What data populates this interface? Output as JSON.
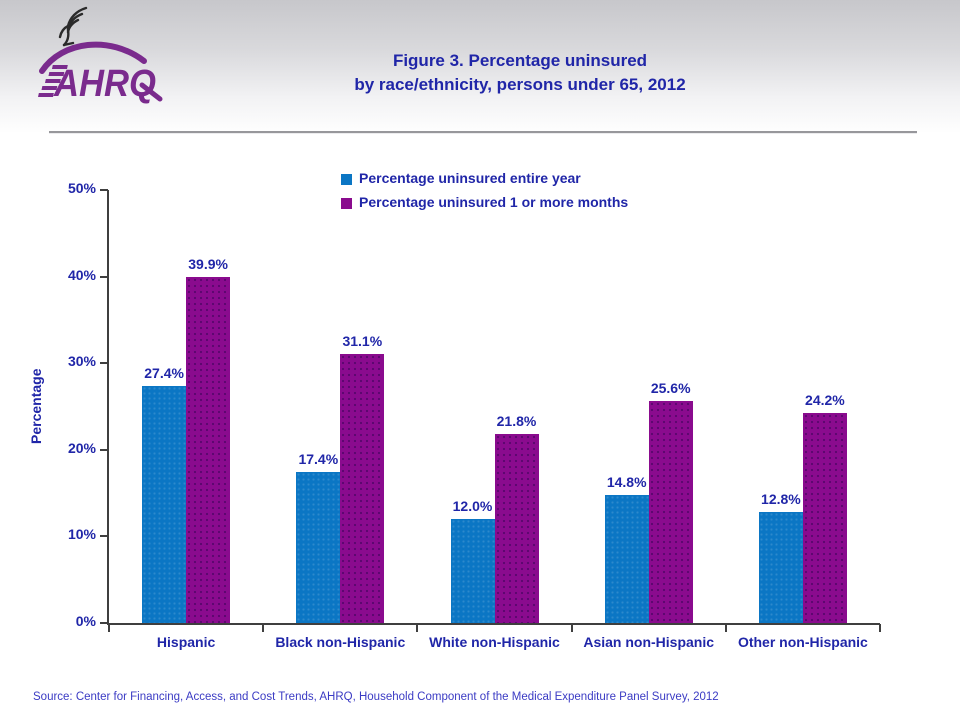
{
  "header": {
    "logo_text": "AHRQ",
    "title_line1": "Figure 3. Percentage uninsured",
    "title_line2": "by race/ethnicity, persons under 65, 2012"
  },
  "chart_data": {
    "type": "bar",
    "title": "Figure 3. Percentage uninsured by race/ethnicity, persons under 65, 2012",
    "categories": [
      "Hispanic",
      "Black non-Hispanic",
      "White non-Hispanic",
      "Asian non-Hispanic",
      "Other non-Hispanic"
    ],
    "series": [
      {
        "name": "Percentage uninsured entire year",
        "color": "#0B76C4",
        "values": [
          27.4,
          17.4,
          12.0,
          14.8,
          12.8
        ],
        "labels": [
          "27.4%",
          "17.4%",
          "12.0%",
          "14.8%",
          "12.8%"
        ]
      },
      {
        "name": "Percentage uninsured 1 or more months",
        "color": "#8A0B8E",
        "values": [
          39.9,
          31.1,
          21.8,
          25.6,
          24.2
        ],
        "labels": [
          "39.9%",
          "31.1%",
          "21.8%",
          "25.6%",
          "24.2%"
        ]
      }
    ],
    "xlabel": "",
    "ylabel": "Percentage",
    "ylim": [
      0,
      50
    ],
    "yticks": [
      "0%",
      "10%",
      "20%",
      "30%",
      "40%",
      "50%"
    ],
    "grid": false,
    "legend_position": "top-center",
    "value_labels_shown": true
  },
  "footer": {
    "source": "Source: Center for Financing, Access, and Cost Trends, AHRQ, Household Component of the Medical Expenditure Panel Survey, 2012"
  },
  "colors": {
    "title_text": "#2026A8",
    "chart_text": "#2026A8",
    "source_text": "#3B3BC4",
    "axis_line": "#3F3F3F",
    "series1": "#0B76C4",
    "series2": "#8A0B8E",
    "logo_purple": "#7A2B8D"
  }
}
